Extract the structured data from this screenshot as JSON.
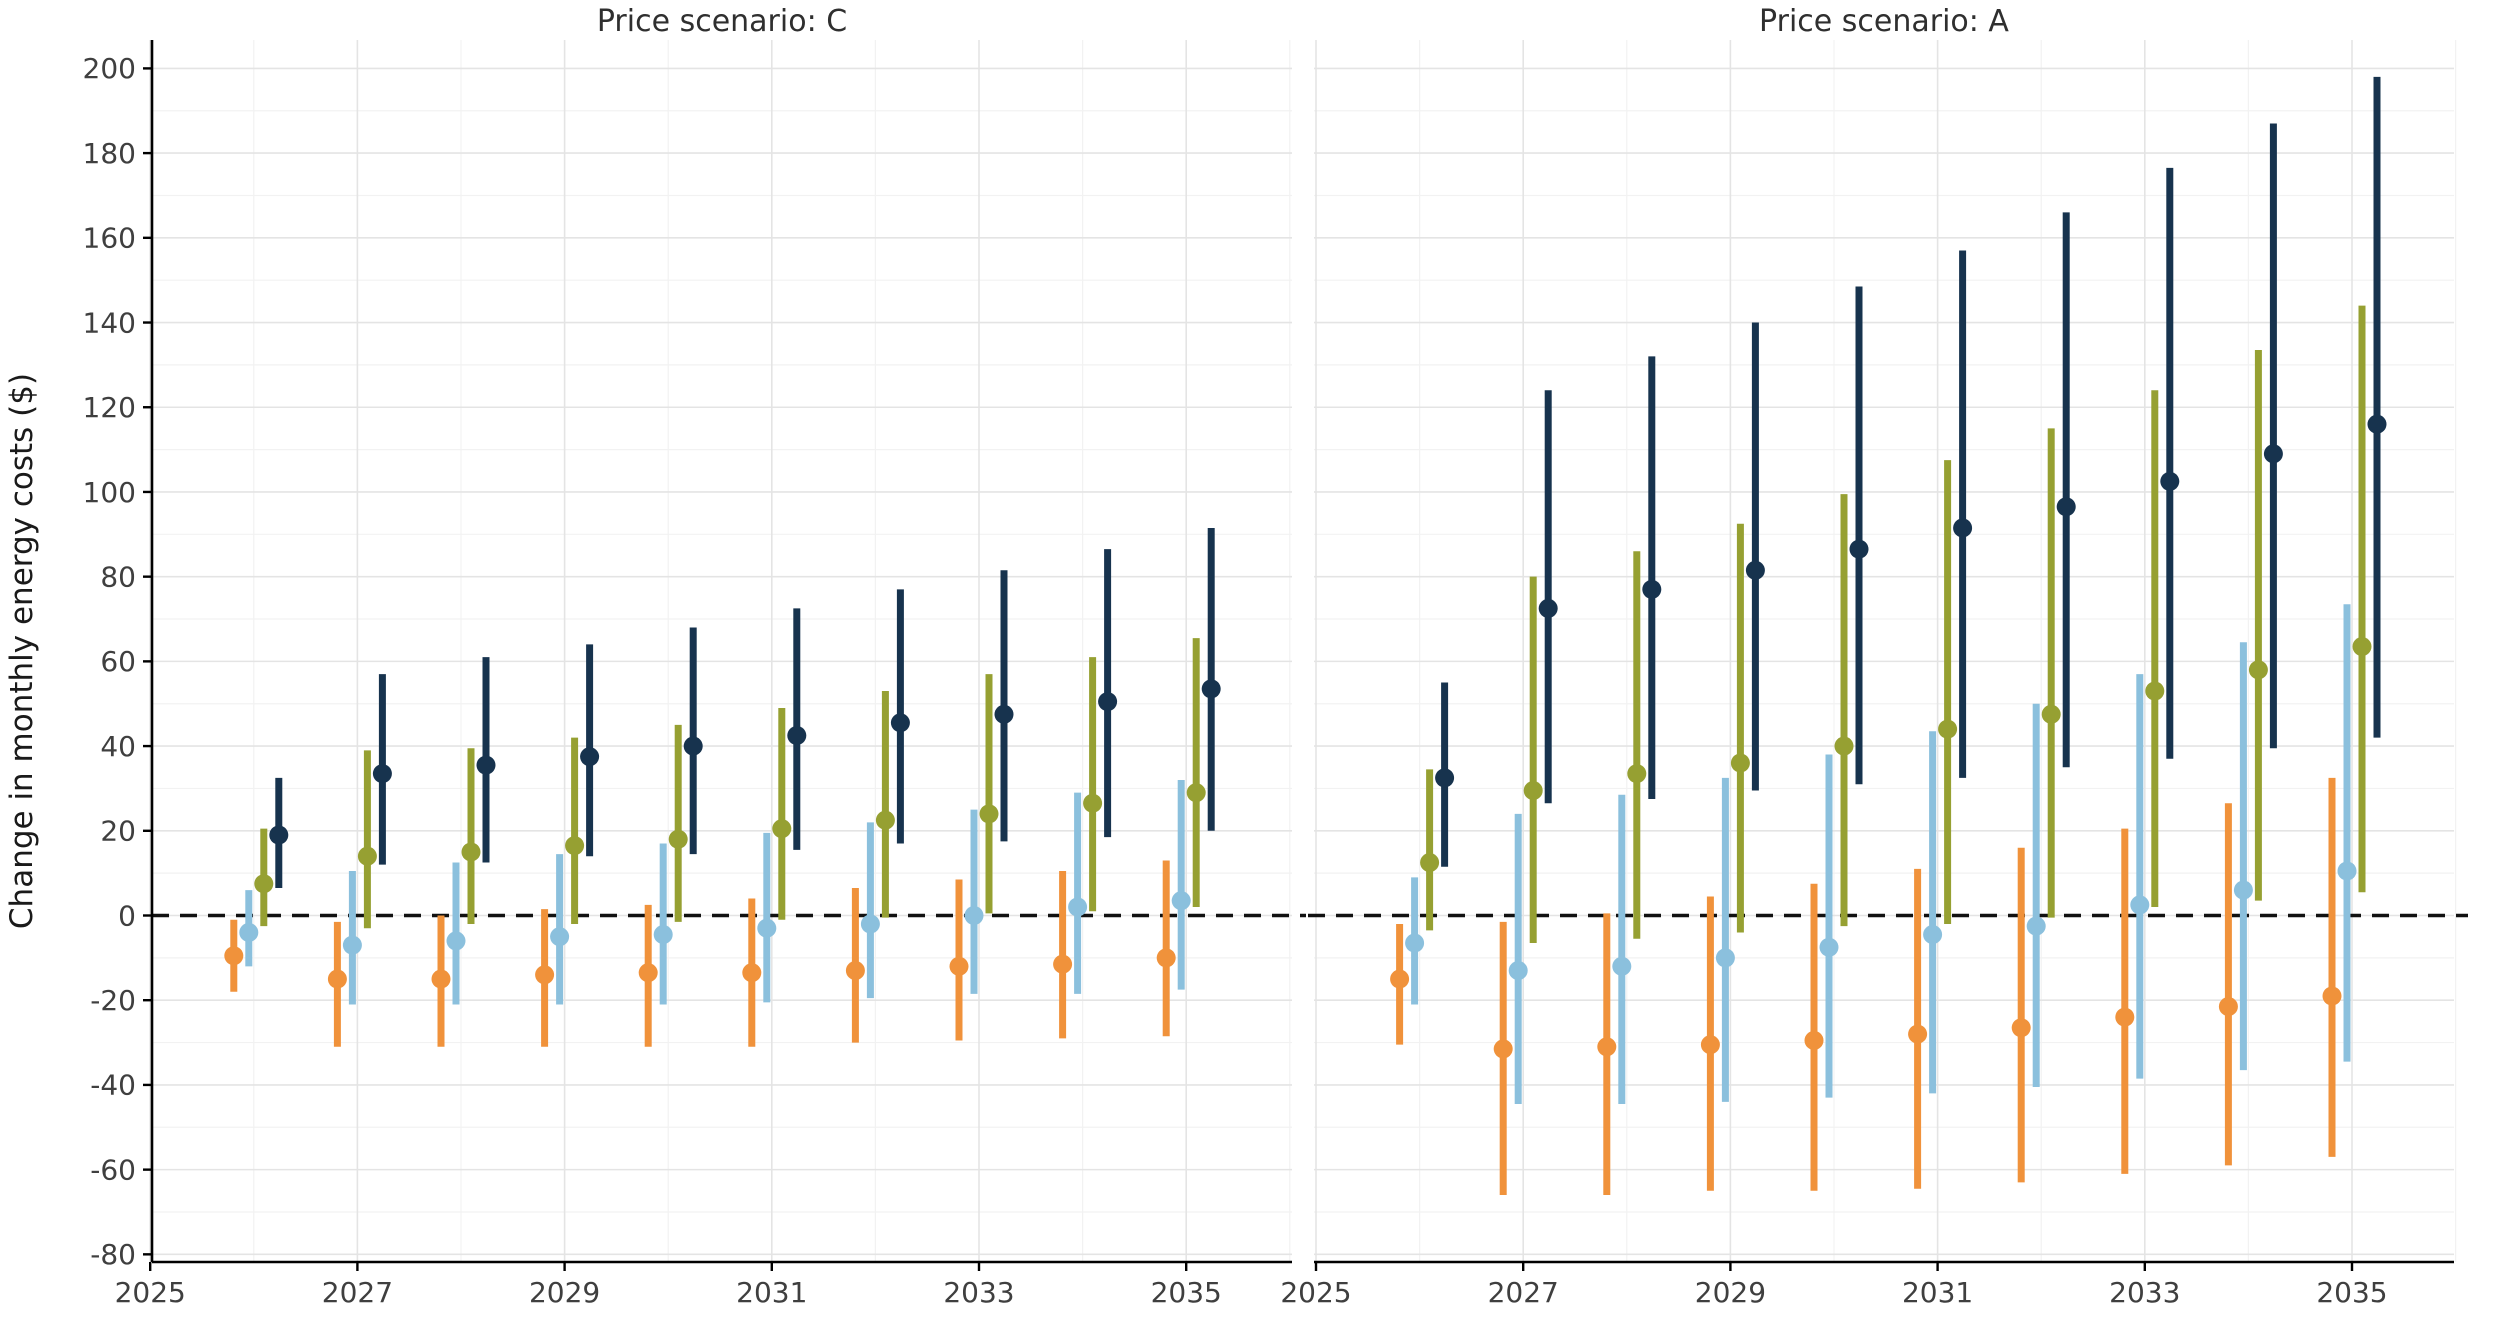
{
  "figure": {
    "ylabel": "Change in monthly energy costs ($)",
    "background": "#ffffff",
    "grid_major_color": "#e4e4e4",
    "grid_minor_color": "#f2f2f2",
    "axis_color": "#000000",
    "tick_text_color": "#3f3f3f",
    "zero_line_color": "#111111"
  },
  "chart_data": [
    {
      "type": "scatter",
      "subtype": "pointrange",
      "title": "Price scenario: C",
      "xlabel": "",
      "ylabel": "Change in monthly energy costs ($)",
      "xlim": [
        2025,
        2036
      ],
      "ylim": [
        -80,
        200
      ],
      "x_ticks": [
        2025,
        2027,
        2029,
        2031,
        2033,
        2035
      ],
      "y_ticks": [
        -80,
        -60,
        -40,
        -20,
        0,
        20,
        40,
        60,
        80,
        100,
        120,
        140,
        160,
        180,
        200
      ],
      "grid": true,
      "legend": "none",
      "zero_line": true,
      "x": [
        2026,
        2027,
        2028,
        2029,
        2030,
        2031,
        2032,
        2033,
        2034,
        2035
      ],
      "series": [
        {
          "name": "orange",
          "color": "#F0923B",
          "mid": [
            -9.5,
            -15,
            -15,
            -14,
            -13.5,
            -13.5,
            -13,
            -12,
            -11.5,
            -10
          ],
          "lo": [
            -18,
            -31,
            -31,
            -31,
            -31,
            -31,
            -30,
            -29.5,
            -29,
            -28.5
          ],
          "hi": [
            -1,
            -1.5,
            0,
            1.5,
            2.5,
            4,
            6.5,
            8.5,
            10.5,
            13
          ]
        },
        {
          "name": "light-blue",
          "color": "#8BC0DD",
          "mid": [
            -4,
            -7,
            -6,
            -5,
            -4.5,
            -3,
            -2,
            0,
            2,
            3.5
          ],
          "lo": [
            -12,
            -21,
            -21,
            -21,
            -21,
            -20.5,
            -19.5,
            -18.5,
            -18.5,
            -17.5
          ],
          "hi": [
            6,
            10.5,
            12.5,
            14.5,
            17,
            19.5,
            22,
            25,
            29,
            32
          ]
        },
        {
          "name": "olive",
          "color": "#96A032",
          "mid": [
            7.5,
            14,
            15,
            16.5,
            18,
            20.5,
            22.5,
            24,
            26.5,
            29
          ],
          "lo": [
            -2.5,
            -3,
            -2,
            -2,
            -1.5,
            -1,
            -0.5,
            0.5,
            1,
            2
          ],
          "hi": [
            20.5,
            39,
            39.5,
            42,
            45,
            49,
            53,
            57,
            61,
            65.5
          ]
        },
        {
          "name": "navy",
          "color": "#17334E",
          "mid": [
            19,
            33.5,
            35.5,
            37.5,
            40,
            42.5,
            45.5,
            47.5,
            50.5,
            53.5
          ],
          "lo": [
            6.5,
            12,
            12.5,
            14,
            14.5,
            15.5,
            17,
            17.5,
            18.5,
            20
          ],
          "hi": [
            32.5,
            57,
            61,
            64,
            68,
            72.5,
            77,
            81.5,
            86.5,
            91.5
          ]
        }
      ]
    },
    {
      "type": "scatter",
      "subtype": "pointrange",
      "title": "Price scenario: A",
      "xlabel": "",
      "ylabel": "Change in monthly energy costs ($)",
      "xlim": [
        2025,
        2036
      ],
      "ylim": [
        -80,
        200
      ],
      "x_ticks": [
        2025,
        2027,
        2029,
        2031,
        2033,
        2035
      ],
      "y_ticks": [
        -80,
        -60,
        -40,
        -20,
        0,
        20,
        40,
        60,
        80,
        100,
        120,
        140,
        160,
        180,
        200
      ],
      "grid": true,
      "legend": "none",
      "zero_line": true,
      "x": [
        2026,
        2027,
        2028,
        2029,
        2030,
        2031,
        2032,
        2033,
        2034,
        2035
      ],
      "series": [
        {
          "name": "orange",
          "color": "#F0923B",
          "mid": [
            -15,
            -31.5,
            -31,
            -30.5,
            -29.5,
            -28,
            -26.5,
            -24,
            -21.5,
            -19
          ],
          "lo": [
            -30.5,
            -66,
            -66,
            -65,
            -65,
            -64.5,
            -63,
            -61,
            -59,
            -57
          ],
          "hi": [
            -2,
            -1.5,
            0.5,
            4.5,
            7.5,
            11,
            16,
            20.5,
            26.5,
            32.5
          ]
        },
        {
          "name": "light-blue",
          "color": "#8BC0DD",
          "mid": [
            -6.5,
            -13,
            -12,
            -10,
            -7.5,
            -4.5,
            -2.5,
            2.5,
            6,
            10.5
          ],
          "lo": [
            -21,
            -44.5,
            -44.5,
            -44,
            -43,
            -42,
            -40.5,
            -38.5,
            -36.5,
            -34.5
          ],
          "hi": [
            9,
            24,
            28.5,
            32.5,
            38,
            43.5,
            50,
            57,
            64.5,
            73.5
          ]
        },
        {
          "name": "olive",
          "color": "#96A032",
          "mid": [
            12.5,
            29.5,
            33.5,
            36,
            40,
            44,
            47.5,
            53,
            58,
            63.5
          ],
          "lo": [
            -3.5,
            -6.5,
            -5.5,
            -4,
            -2.5,
            -2,
            -0.5,
            2,
            3.5,
            5.5
          ],
          "hi": [
            34.5,
            80,
            86,
            92.5,
            99.5,
            107.5,
            115,
            124,
            133.5,
            144
          ]
        },
        {
          "name": "navy",
          "color": "#17334E",
          "mid": [
            32.5,
            72.5,
            77,
            81.5,
            86.5,
            91.5,
            96.5,
            102.5,
            109,
            116
          ],
          "lo": [
            11.5,
            26.5,
            27.5,
            29.5,
            31,
            32.5,
            35,
            37,
            39.5,
            42
          ],
          "hi": [
            55,
            124,
            132,
            140,
            148.5,
            157,
            166,
            176.5,
            187,
            198
          ]
        }
      ]
    }
  ]
}
